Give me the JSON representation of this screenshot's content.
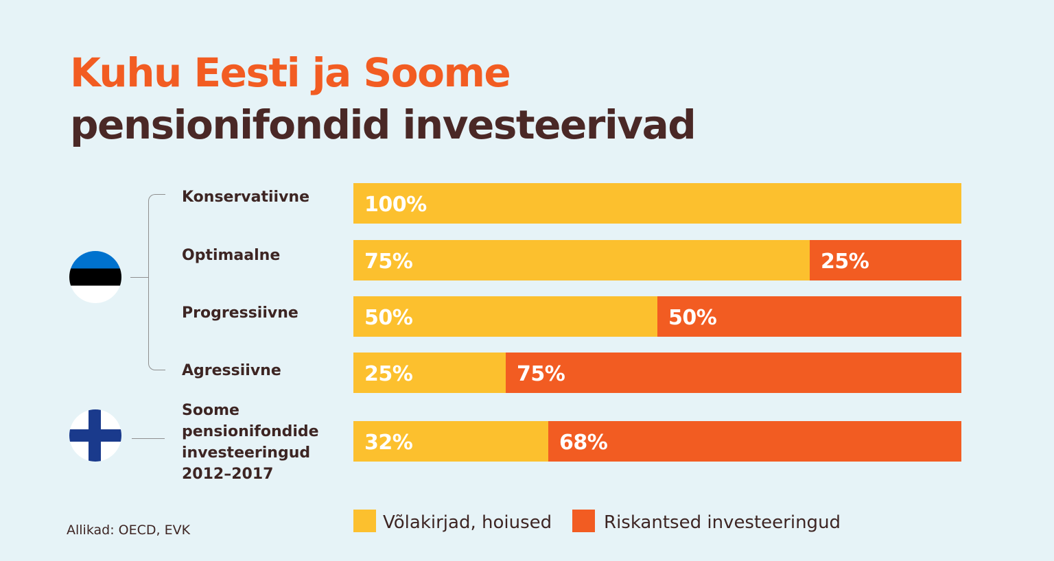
{
  "title": {
    "line1": "Kuhu Eesti ja Soome",
    "line2": "pensionifondid investeerivad"
  },
  "colors": {
    "bonds": "#fcc02e",
    "risky": "#f25c22"
  },
  "source": "Allikad: OECD, EVK",
  "flags": {
    "estonia": "estonia-flag-icon",
    "finland": "finland-flag-icon"
  },
  "chart_data": {
    "type": "bar",
    "orientation": "horizontal",
    "stacked": true,
    "categories": [
      "Konservatiivne",
      "Optimaalne",
      "Progressiivne",
      "Agressiivne",
      "Soome pensionifondide investeeringud 2012–2017"
    ],
    "series": [
      {
        "name": "Võlakirjad, hoiused",
        "values": [
          100,
          75,
          50,
          25,
          32
        ],
        "labels": [
          "100%",
          "75%",
          "50%",
          "25%",
          "32%"
        ]
      },
      {
        "name": "Riskantsed investeeringud",
        "values": [
          0,
          25,
          50,
          75,
          68
        ],
        "labels": [
          "",
          "25%",
          "50%",
          "75%",
          "68%"
        ]
      }
    ],
    "xlim": [
      0,
      100
    ]
  }
}
